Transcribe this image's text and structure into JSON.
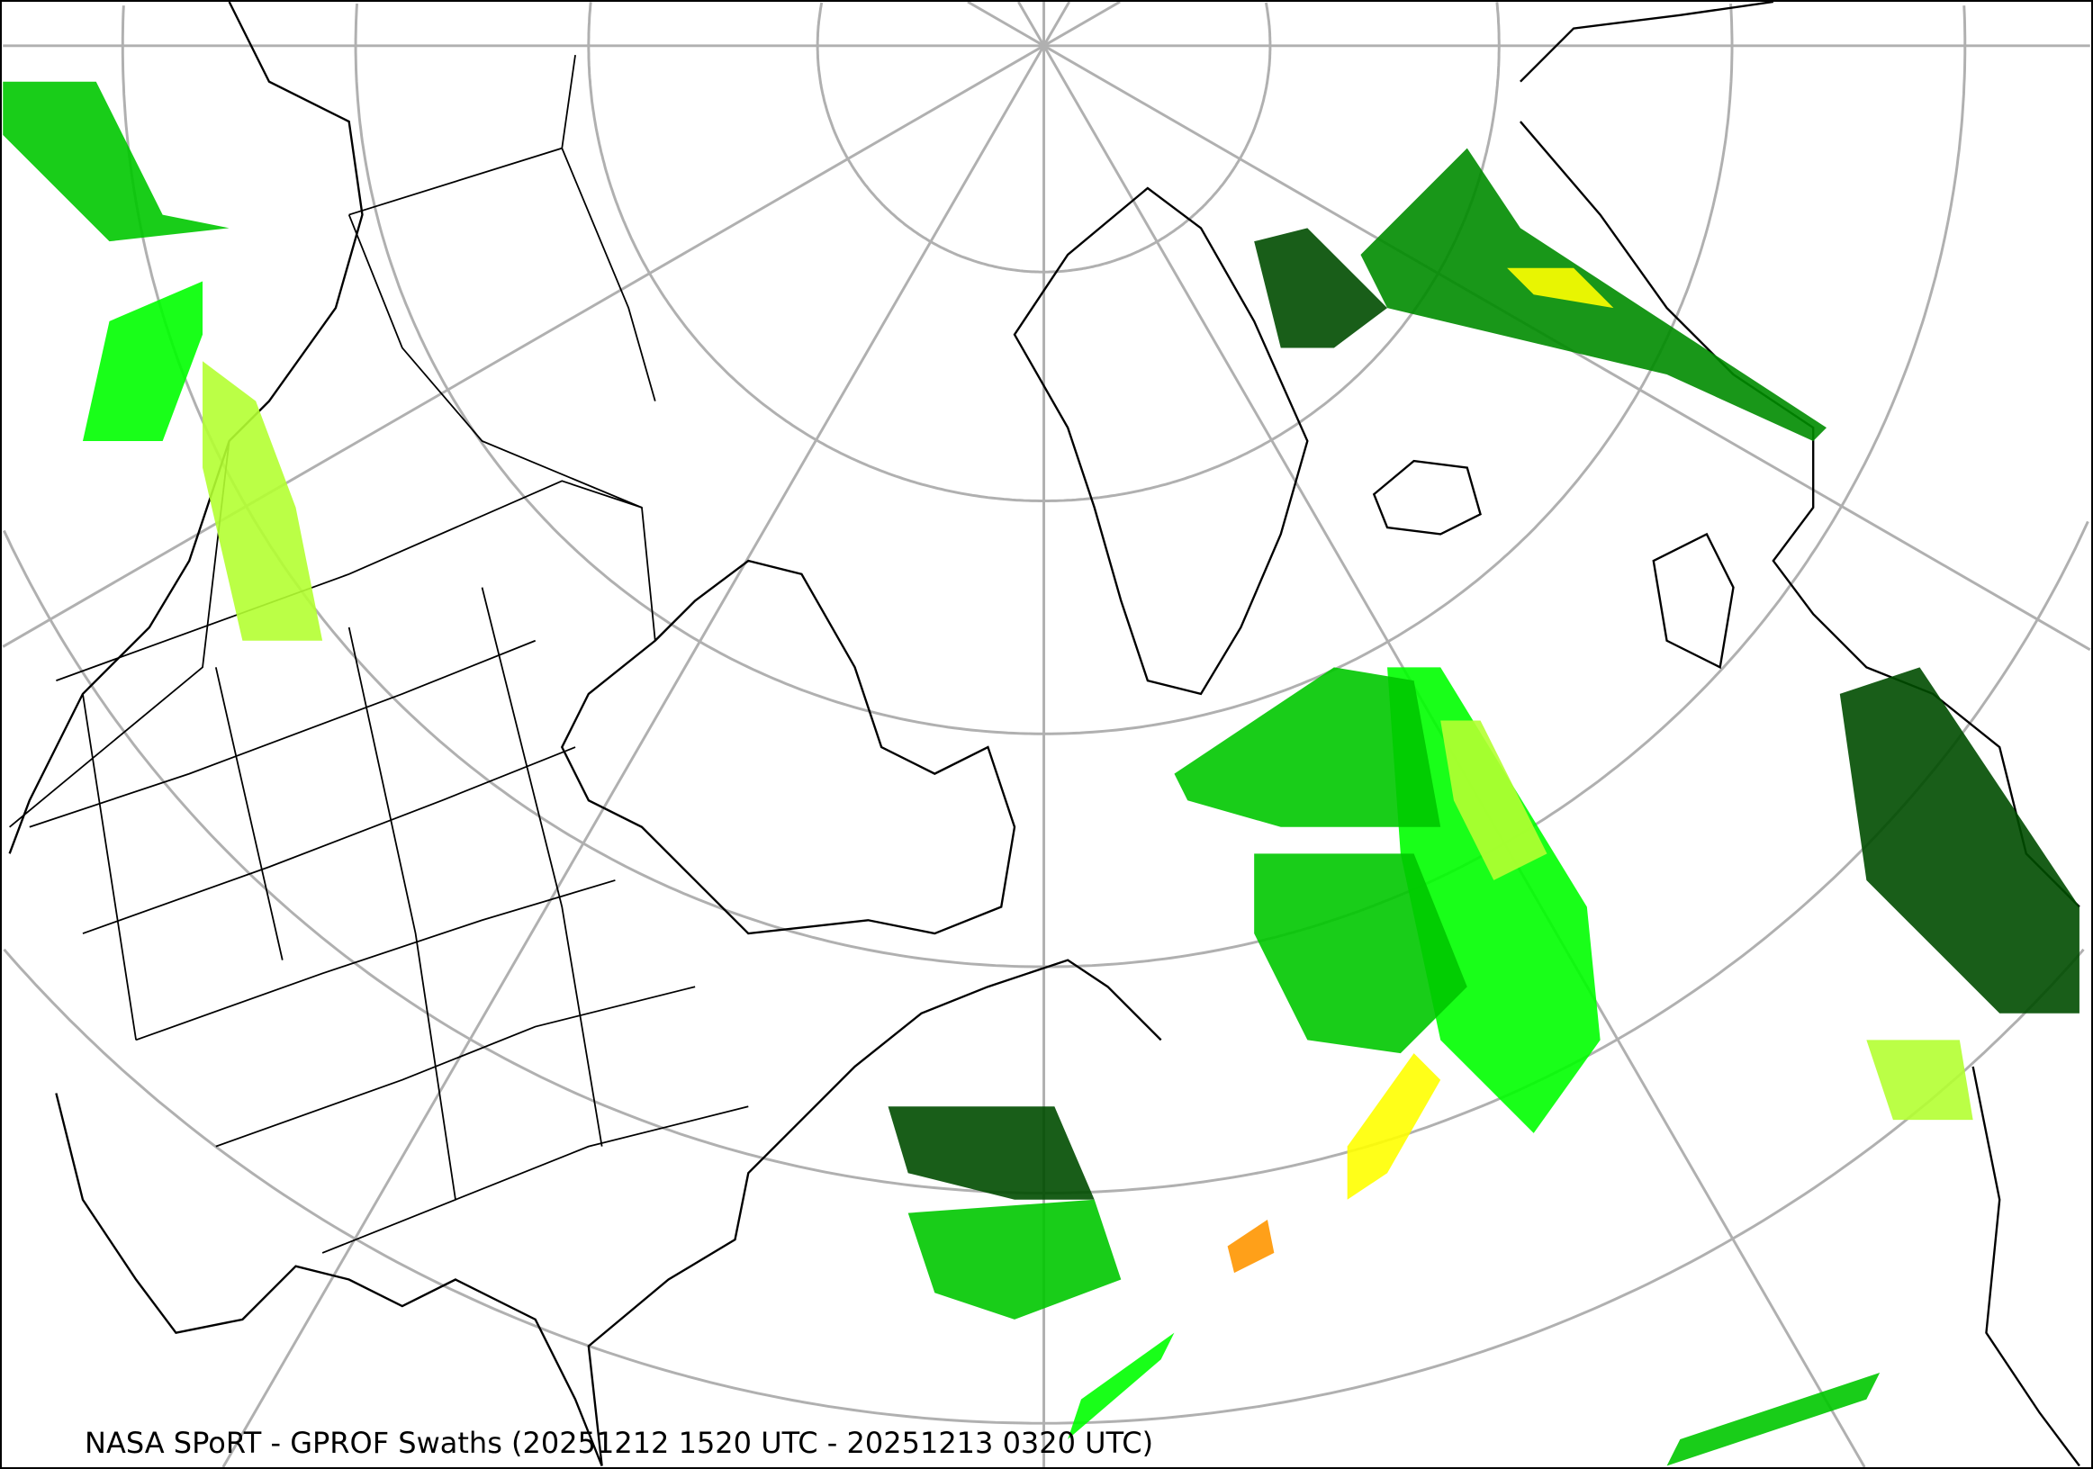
{
  "map": {
    "caption": "NASA SPoRT - GPROF Swaths (20251212 1520 UTC - 20251213 0320 UTC)",
    "projection": "north-polar-stereographic",
    "graticule_color": "#b0b0b0",
    "coastline_color": "#000000",
    "precip_palette": [
      "#004d00",
      "#008c00",
      "#00c800",
      "#00ff00",
      "#b4ff32",
      "#ffff00",
      "#ff9600",
      "#ff3c00"
    ]
  }
}
